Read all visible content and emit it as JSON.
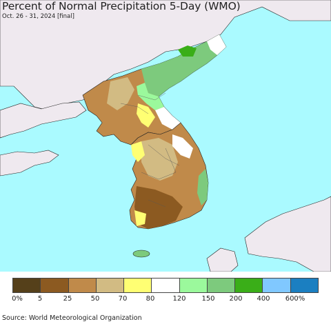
{
  "header": {
    "title": "Percent of Normal Precipitation 5-Day (WMO)",
    "subtitle": "Oct. 26 - 31, 2024 [final]"
  },
  "map": {
    "ocean_color": "#aafaff",
    "land_outside_color": "#efe9ef",
    "border_color": "#222222"
  },
  "legend": {
    "colors": [
      "#55401a",
      "#8c5a21",
      "#c08a4a",
      "#d2bb83",
      "#ffff73",
      "#ffffff",
      "#9bf99c",
      "#7dca7d",
      "#3aae18",
      "#80c8ff",
      "#1b7fc1"
    ],
    "labels": [
      "0%",
      "5",
      "25",
      "50",
      "70",
      "80",
      "120",
      "150",
      "200",
      "400",
      "600%"
    ]
  },
  "footer": {
    "source": "Source: World Meteorological Organization"
  }
}
